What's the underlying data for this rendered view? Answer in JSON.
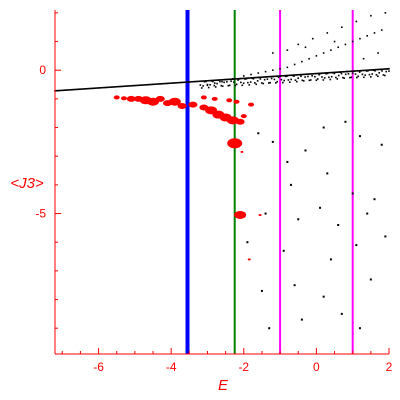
{
  "chart_data": {
    "type": "scatter",
    "title": "",
    "xlabel": "E",
    "ylabel": "<J3>",
    "xlim": [
      -7.2,
      2.0
    ],
    "ylim": [
      -9.9,
      2.1
    ],
    "xticks": [
      -6,
      -4,
      -2,
      0,
      2
    ],
    "yticks": [
      0,
      -5
    ],
    "grid": false,
    "colors": {
      "axis": "#ff0000",
      "text": "#ff0000",
      "points_black": "#000000",
      "points_red": "#ff0000",
      "line_blue": "#0000ff",
      "line_green": "#008000",
      "line_magenta": "#ff00ff"
    },
    "vertical_lines": [
      {
        "x": -3.55,
        "color": "#0000ff",
        "width": 4
      },
      {
        "x": -2.25,
        "color": "#008000",
        "width": 2
      },
      {
        "x": -1.0,
        "color": "#ff00ff",
        "width": 2
      },
      {
        "x": 1.0,
        "color": "#ff00ff",
        "width": 2
      }
    ],
    "black_band": {
      "x_start": -7.2,
      "x_end": 2.0,
      "count": 240,
      "y_start": -0.72,
      "y_end": 0.05,
      "points": [
        [
          -3.0,
          -0.5
        ],
        [
          -2.8,
          -0.45
        ],
        [
          -2.6,
          -0.4
        ],
        [
          -2.3,
          -0.3
        ],
        [
          -2.0,
          -0.2
        ],
        [
          -1.8,
          -0.15
        ],
        [
          -1.6,
          -0.1
        ],
        [
          -1.4,
          -0.05
        ],
        [
          -1.2,
          0.0
        ],
        [
          -1.0,
          0.05
        ],
        [
          -0.8,
          0.1
        ],
        [
          -0.6,
          0.2
        ],
        [
          -0.4,
          0.3
        ],
        [
          -0.2,
          0.4
        ],
        [
          0.0,
          0.5
        ],
        [
          0.2,
          0.6
        ],
        [
          0.4,
          0.7
        ],
        [
          0.6,
          0.8
        ],
        [
          0.8,
          0.9
        ],
        [
          1.0,
          1.0
        ],
        [
          1.2,
          1.1
        ],
        [
          1.4,
          1.2
        ],
        [
          1.6,
          1.3
        ],
        [
          1.8,
          1.4
        ],
        [
          -0.5,
          0.9
        ],
        [
          -0.1,
          1.1
        ],
        [
          0.3,
          1.3
        ],
        [
          0.7,
          1.5
        ],
        [
          1.1,
          1.7
        ],
        [
          1.5,
          1.9
        ],
        [
          1.9,
          2.0
        ],
        [
          -1.2,
          0.6
        ],
        [
          -0.8,
          0.7
        ],
        [
          -0.3,
          0.8
        ],
        [
          0.5,
          1.0
        ],
        [
          1.3,
          0.4
        ],
        [
          1.7,
          0.6
        ]
      ]
    },
    "black_scatter": [
      [
        -1.6,
        -2.2
      ],
      [
        -1.2,
        -2.5
      ],
      [
        -0.8,
        -3.2
      ],
      [
        -0.3,
        -2.8
      ],
      [
        0.2,
        -2.0
      ],
      [
        0.8,
        -1.8
      ],
      [
        1.2,
        -2.3
      ],
      [
        1.8,
        -2.6
      ],
      [
        -0.7,
        -4.0
      ],
      [
        0.3,
        -3.6
      ],
      [
        1.0,
        -4.3
      ],
      [
        1.6,
        -4.5
      ],
      [
        -1.4,
        -5.0
      ],
      [
        -0.5,
        -5.2
      ],
      [
        0.1,
        -4.8
      ],
      [
        0.6,
        -5.4
      ],
      [
        1.4,
        -5.0
      ],
      [
        1.9,
        -5.8
      ],
      [
        -1.9,
        -6.0
      ],
      [
        -0.9,
        -6.3
      ],
      [
        0.4,
        -6.6
      ],
      [
        1.1,
        -6.1
      ],
      [
        -1.5,
        -7.7
      ],
      [
        -0.6,
        -7.5
      ],
      [
        0.2,
        -7.9
      ],
      [
        1.5,
        -7.3
      ],
      [
        -1.3,
        -9.0
      ],
      [
        -0.4,
        -8.7
      ],
      [
        0.7,
        -8.5
      ],
      [
        1.2,
        -9.0
      ]
    ],
    "red_points": [
      {
        "x": -5.5,
        "y": -0.95,
        "r": 2
      },
      {
        "x": -5.3,
        "y": -0.98,
        "r": 2
      },
      {
        "x": -5.1,
        "y": -1.0,
        "r": 3
      },
      {
        "x": -4.9,
        "y": -1.0,
        "r": 3
      },
      {
        "x": -4.7,
        "y": -1.05,
        "r": 4
      },
      {
        "x": -4.5,
        "y": -1.1,
        "r": 4
      },
      {
        "x": -4.3,
        "y": -1.0,
        "r": 3
      },
      {
        "x": -4.1,
        "y": -1.15,
        "r": 3
      },
      {
        "x": -3.9,
        "y": -1.1,
        "r": 4
      },
      {
        "x": -3.7,
        "y": -1.25,
        "r": 3
      },
      {
        "x": -3.4,
        "y": -1.2,
        "r": 3
      },
      {
        "x": -3.1,
        "y": -1.3,
        "r": 3
      },
      {
        "x": -2.9,
        "y": -1.4,
        "r": 4
      },
      {
        "x": -2.7,
        "y": -1.55,
        "r": 4
      },
      {
        "x": -2.5,
        "y": -1.65,
        "r": 4
      },
      {
        "x": -2.3,
        "y": -1.75,
        "r": 4
      },
      {
        "x": -2.1,
        "y": -1.8,
        "r": 3
      },
      {
        "x": -3.1,
        "y": -0.95,
        "r": 2
      },
      {
        "x": -2.8,
        "y": -1.0,
        "r": 2
      },
      {
        "x": -2.4,
        "y": -1.05,
        "r": 2
      },
      {
        "x": -2.2,
        "y": -1.1,
        "r": 2
      },
      {
        "x": -1.8,
        "y": -1.2,
        "r": 2
      },
      {
        "x": -2.0,
        "y": -1.6,
        "r": 2
      },
      {
        "x": -2.25,
        "y": -2.55,
        "r": 5
      },
      {
        "x": -2.05,
        "y": -2.85,
        "r": 1
      },
      {
        "x": -2.1,
        "y": -5.05,
        "r": 4
      },
      {
        "x": -1.55,
        "y": -5.05,
        "r": 1
      },
      {
        "x": -1.85,
        "y": -6.6,
        "r": 1
      }
    ]
  }
}
